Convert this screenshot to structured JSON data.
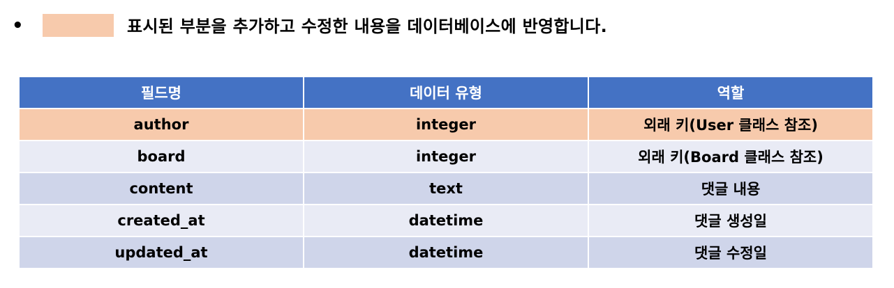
{
  "note": {
    "bullet": "•",
    "text": "표시된 부분을 추가하고 수정한 내용을 데이터베이스에 반영합니다.",
    "highlight_color": "#f7caac"
  },
  "table": {
    "header_color": "#4472c4",
    "columns": [
      "필드명",
      "데이터 유형",
      "역할"
    ],
    "rows": [
      {
        "field": "author",
        "type": "integer",
        "role": "외래 키(User 클래스 참조)",
        "style": "highlight"
      },
      {
        "field": "board",
        "type": "integer",
        "role": "외래 키(Board 클래스 참조)",
        "style": "light"
      },
      {
        "field": "content",
        "type": "text",
        "role": "댓글 내용",
        "style": "dark"
      },
      {
        "field": "created_at",
        "type": "datetime",
        "role": "댓글 생성일",
        "style": "light"
      },
      {
        "field": "updated_at",
        "type": "datetime",
        "role": "댓글 수정일",
        "style": "dark"
      }
    ]
  }
}
